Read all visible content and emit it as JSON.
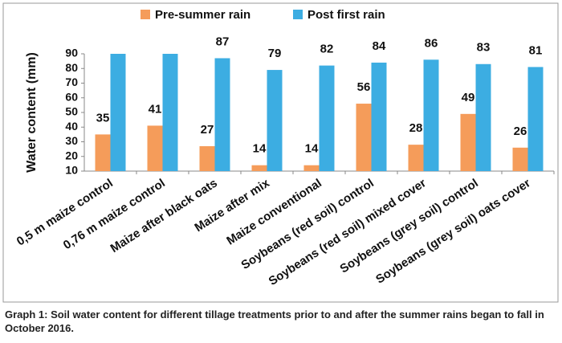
{
  "chart_data": {
    "type": "bar",
    "ylabel": "Water content (mm)",
    "categories": [
      "0,5 m maize control",
      "0,76 m maize control",
      "Maize after black oats",
      "Maize after mix",
      "Maize conventional",
      "Soybeans (red soil) control",
      "Soybeans (red soil) mixed cover",
      "Soybeans (grey soil) control",
      "Soybeans (grey soil) oats cover"
    ],
    "series": [
      {
        "name": "Pre-summer rain",
        "color": "#f59c5a",
        "values": [
          35,
          41,
          27,
          14,
          14,
          56,
          28,
          49,
          26
        ]
      },
      {
        "name": "Post first rain",
        "color": "#3cade2",
        "values": [
          90,
          90,
          87,
          79,
          82,
          84,
          86,
          83,
          81
        ],
        "value_labels": [
          null,
          null,
          "87",
          "79",
          "82",
          "84",
          "86",
          "83",
          "81"
        ]
      }
    ],
    "ylim": [
      10,
      90
    ],
    "yticks": [
      10,
      20,
      30,
      40,
      50,
      60,
      70,
      80,
      90
    ],
    "legend": "top",
    "caption": "Graph 1: Soil water content for different tillage treatments prior to and after the summer rains began to fall in October 2016."
  }
}
